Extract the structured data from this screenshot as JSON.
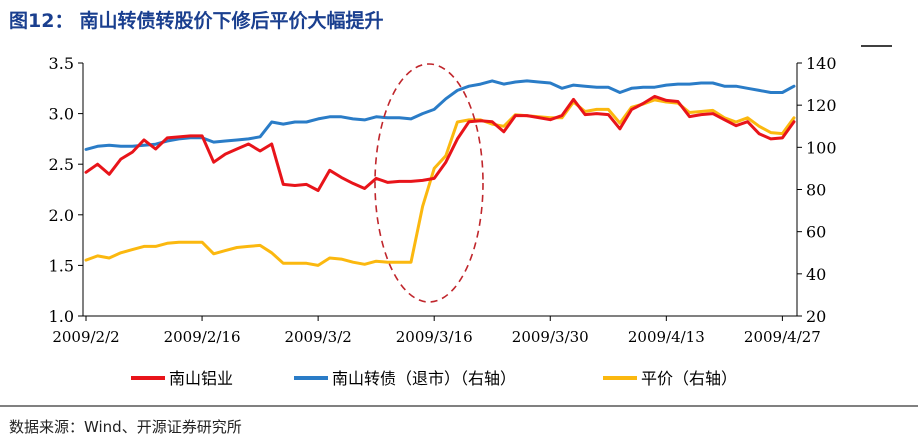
{
  "figure_title": {
    "number": "图12：",
    "text": "南山转债转股价下修后平价大幅提升"
  },
  "source": "数据来源：Wind、开源证券研究所",
  "chart_data": {
    "type": "line",
    "x": [
      "2009/2/2",
      "2009/2/3",
      "2009/2/4",
      "2009/2/5",
      "2009/2/6",
      "2009/2/9",
      "2009/2/10",
      "2009/2/11",
      "2009/2/12",
      "2009/2/13",
      "2009/2/16",
      "2009/2/17",
      "2009/2/18",
      "2009/2/19",
      "2009/2/20",
      "2009/2/23",
      "2009/2/24",
      "2009/2/25",
      "2009/2/26",
      "2009/2/27",
      "2009/3/2",
      "2009/3/3",
      "2009/3/4",
      "2009/3/5",
      "2009/3/6",
      "2009/3/9",
      "2009/3/10",
      "2009/3/11",
      "2009/3/12",
      "2009/3/13",
      "2009/3/16",
      "2009/3/17",
      "2009/3/18",
      "2009/3/19",
      "2009/3/20",
      "2009/3/23",
      "2009/3/24",
      "2009/3/25",
      "2009/3/26",
      "2009/3/27",
      "2009/3/30",
      "2009/3/31",
      "2009/4/1",
      "2009/4/2",
      "2009/4/3",
      "2009/4/6",
      "2009/4/7",
      "2009/4/8",
      "2009/4/9",
      "2009/4/10",
      "2009/4/13",
      "2009/4/14",
      "2009/4/15",
      "2009/4/16",
      "2009/4/17",
      "2009/4/20",
      "2009/4/21",
      "2009/4/22",
      "2009/4/23",
      "2009/4/24",
      "2009/4/27",
      "2009/4/28"
    ],
    "x_tick_labels": [
      "2009/2/2",
      "2009/2/16",
      "2009/3/2",
      "2009/3/16",
      "2009/3/30",
      "2009/4/13",
      "2009/4/27"
    ],
    "x_tick_indices": [
      0,
      10,
      20,
      30,
      40,
      50,
      60
    ],
    "y_left": {
      "ticks": [
        "1.0",
        "1.5",
        "2.0",
        "2.5",
        "3.0",
        "3.5"
      ],
      "ylim": [
        1.0,
        3.5
      ]
    },
    "y_right": {
      "ticks": [
        "20",
        "40",
        "60",
        "80",
        "100",
        "120",
        "140"
      ],
      "ylim": [
        20,
        140
      ]
    },
    "series": [
      {
        "name": "南山铝业",
        "axis": "left",
        "color": "#e8141a",
        "values": [
          2.42,
          2.5,
          2.4,
          2.55,
          2.62,
          2.74,
          2.65,
          2.76,
          2.77,
          2.78,
          2.78,
          2.52,
          2.6,
          2.65,
          2.7,
          2.63,
          2.7,
          2.3,
          2.29,
          2.3,
          2.24,
          2.44,
          2.37,
          2.31,
          2.26,
          2.36,
          2.32,
          2.33,
          2.33,
          2.34,
          2.36,
          2.52,
          2.75,
          2.92,
          2.93,
          2.92,
          2.82,
          2.98,
          2.98,
          2.96,
          2.94,
          2.98,
          3.14,
          2.99,
          3.0,
          2.99,
          2.85,
          3.04,
          3.1,
          3.17,
          3.13,
          3.12,
          2.97,
          2.99,
          3.0,
          2.94,
          2.88,
          2.92,
          2.8,
          2.75,
          2.76,
          2.92
        ]
      },
      {
        "name": "南山转债（退市）（右轴）",
        "axis": "right",
        "color": "#2a7cc7",
        "values": [
          99.0,
          100.5,
          101.0,
          100.5,
          100.5,
          101.0,
          101.5,
          103.0,
          104.0,
          104.5,
          104.5,
          102.5,
          103.0,
          103.5,
          104.0,
          105.0,
          112.0,
          111.0,
          112.0,
          112.0,
          113.5,
          114.5,
          114.5,
          113.5,
          113.0,
          114.5,
          114.0,
          114.0,
          113.5,
          116.0,
          118.0,
          123.0,
          127.0,
          129.0,
          130.0,
          131.5,
          130.0,
          131.0,
          131.5,
          131.0,
          130.5,
          128.0,
          129.5,
          129.0,
          128.5,
          128.5,
          126.0,
          128.0,
          128.5,
          128.5,
          129.5,
          130.0,
          130.0,
          130.5,
          130.5,
          129.0,
          129.0,
          128.0,
          127.0,
          126.0,
          126.0,
          129.0
        ]
      },
      {
        "name": "平价（右轴）",
        "axis": "right",
        "color": "#fbb80f",
        "values": [
          46.5,
          48.5,
          47.5,
          50.0,
          51.5,
          53.0,
          53.0,
          54.5,
          55.0,
          55.0,
          55.0,
          49.5,
          51.0,
          52.5,
          53.0,
          53.5,
          50.0,
          45.0,
          45.0,
          45.0,
          44.0,
          47.5,
          47.0,
          45.5,
          44.5,
          46.0,
          45.5,
          45.5,
          45.5,
          72.0,
          90.0,
          96.0,
          112.0,
          113.0,
          113.0,
          111.0,
          110.0,
          115.5,
          115.0,
          114.5,
          114.0,
          114.0,
          121.5,
          117.0,
          118.0,
          118.0,
          111.5,
          119.0,
          120.5,
          122.5,
          121.5,
          121.0,
          116.5,
          117.0,
          117.5,
          114.0,
          112.0,
          114.0,
          110.0,
          107.0,
          106.5,
          114.0
        ]
      }
    ],
    "annotation": "red dashed ellipse highlighting the 2009/3/16 jump",
    "legend_position": "bottom"
  }
}
